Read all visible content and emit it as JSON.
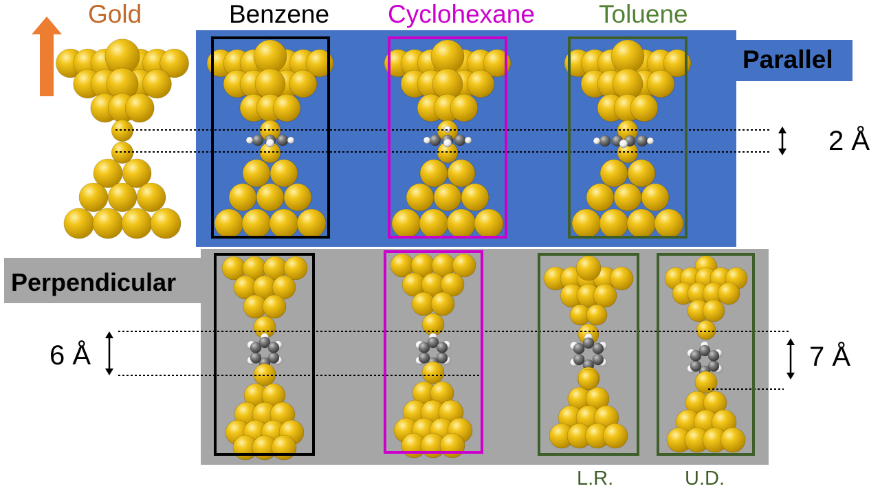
{
  "labels": {
    "gold": "Gold",
    "benzene": "Benzene",
    "cyclohexane": "Cyclohexane",
    "toluene": "Toluene",
    "parallel": "Parallel",
    "perpendicular": "Perpendicular",
    "dist_parallel": "2 Å",
    "dist_perp_left": "6 Å",
    "dist_perp_right": "7 Å",
    "lr": "L.R.",
    "ud": "U.D."
  },
  "colors": {
    "gold_label": "#c0692a",
    "arrow": "#ed7d31",
    "benzene_frame": "#000000",
    "cyclohexane_frame": "#cc00cc",
    "toluene_frame": "#3f5f2a",
    "parallel_band": "#4472c4",
    "perpendicular_band": "#a6a6a6",
    "gold_atom": "#e9b611",
    "carbon_atom": "#6e6e6e",
    "hydrogen_atom": "#f2f2f2"
  }
}
